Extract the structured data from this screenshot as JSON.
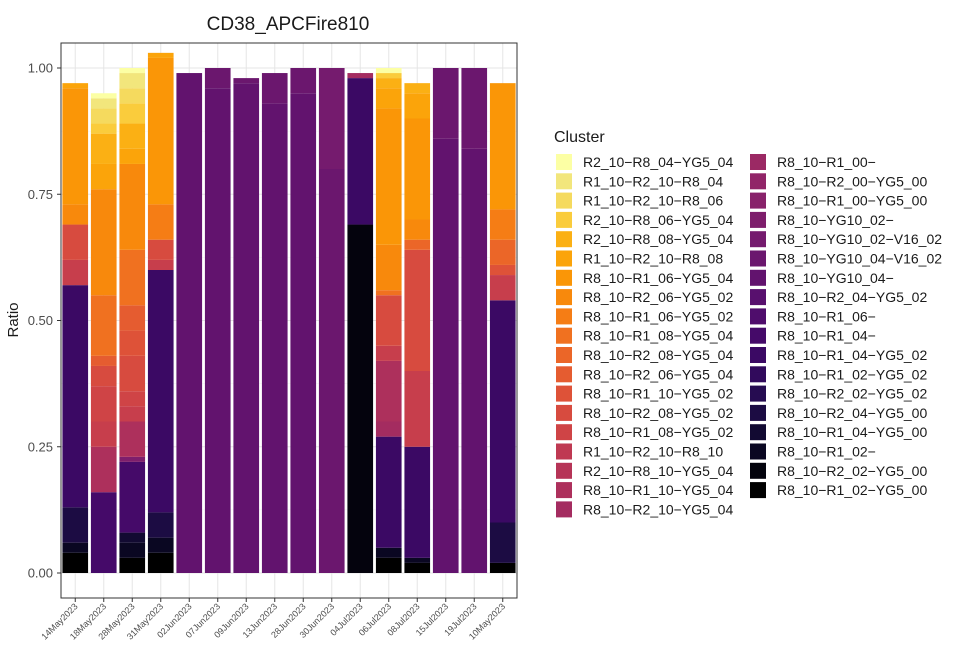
{
  "chart_data": {
    "type": "bar",
    "stacked": true,
    "title": "CD38_APCFire810",
    "xlabel": "",
    "ylabel": "Ratio",
    "ylim": [
      0,
      1.0
    ],
    "yticks": [
      "0.00",
      "0.25",
      "0.50",
      "0.75",
      "1.00"
    ],
    "grid": true,
    "legend_title": "Cluster",
    "legend_position": "right",
    "categories": [
      "14May2023",
      "18May2023",
      "28May2023",
      "31May2023",
      "02Jun2023",
      "07Jun2023",
      "09Jun2023",
      "13Jun2023",
      "28Jun2023",
      "30Jun2023",
      "04Jul2023",
      "06Jul2023",
      "08Jul2023",
      "15Jul2023",
      "19Jul2023",
      "10May2023"
    ],
    "series": [
      {
        "name": "R8_10−R1_02−YG5_00",
        "color": "#000000",
        "values": [
          0.04,
          0,
          0.03,
          0.04,
          0,
          0,
          0,
          0,
          0,
          0,
          0,
          0.03,
          0.02,
          0,
          0,
          0.02
        ]
      },
      {
        "name": "R8_10−R2_02−YG5_00",
        "color": "#04030d",
        "values": [
          0,
          0,
          0,
          0,
          0,
          0,
          0,
          0,
          0,
          0,
          0.69,
          0,
          0,
          0,
          0,
          0
        ]
      },
      {
        "name": "R8_10−R1_02−",
        "color": "#0a0722",
        "values": [
          0.02,
          0,
          0.03,
          0.03,
          0,
          0,
          0,
          0,
          0,
          0,
          0,
          0.02,
          0.01,
          0,
          0,
          0
        ]
      },
      {
        "name": "R8_10−R1_04−YG5_00",
        "color": "#120a32",
        "values": [
          0,
          0,
          0.02,
          0,
          0,
          0,
          0,
          0,
          0,
          0,
          0,
          0,
          0,
          0,
          0,
          0
        ]
      },
      {
        "name": "R8_10−R2_04−YG5_00",
        "color": "#1c0c43",
        "values": [
          0.07,
          0,
          0,
          0.05,
          0,
          0,
          0,
          0,
          0,
          0,
          0,
          0,
          0,
          0,
          0,
          0.08
        ]
      },
      {
        "name": "R8_10−R2_02−YG5_02",
        "color": "#260c51",
        "values": [
          0,
          0,
          0,
          0,
          0,
          0,
          0,
          0,
          0,
          0,
          0,
          0,
          0,
          0,
          0,
          0
        ]
      },
      {
        "name": "R8_10−R1_02−YG5_02",
        "color": "#310a5c",
        "values": [
          0,
          0,
          0,
          0,
          0,
          0,
          0,
          0,
          0,
          0,
          0,
          0,
          0,
          0,
          0,
          0
        ]
      },
      {
        "name": "R8_10−R1_04−YG5_02",
        "color": "#3b0964",
        "values": [
          0.44,
          0,
          0,
          0.48,
          0,
          0,
          0,
          0,
          0,
          0,
          0.29,
          0.22,
          0.22,
          0,
          0,
          0.44
        ]
      },
      {
        "name": "R8_10−R1_04−",
        "color": "#450a69",
        "values": [
          0,
          0.16,
          0.14,
          0,
          0,
          0,
          0,
          0,
          0,
          0,
          0,
          0,
          0,
          0,
          0,
          0
        ]
      },
      {
        "name": "R8_10−R1_06−",
        "color": "#4f0d6c",
        "values": [
          0,
          0,
          0,
          0,
          0,
          0,
          0,
          0,
          0,
          0,
          0,
          0,
          0,
          0,
          0,
          0
        ]
      },
      {
        "name": "R8_10−R2_04−YG5_02",
        "color": "#58106e",
        "values": [
          0,
          0,
          0,
          0,
          0,
          0,
          0,
          0,
          0,
          0,
          0,
          0,
          0,
          0,
          0,
          0
        ]
      },
      {
        "name": "R8_10−YG10_04−",
        "color": "#62136e",
        "values": [
          0,
          0,
          0,
          0,
          0.99,
          0.96,
          0.97,
          0.93,
          0.95,
          0,
          0,
          0,
          0,
          0.86,
          0.84,
          0
        ]
      },
      {
        "name": "R8_10−YG10_04−V16_02",
        "color": "#6b176e",
        "values": [
          0,
          0,
          0,
          0,
          0,
          0.04,
          0.01,
          0.06,
          0.05,
          0.8,
          0,
          0,
          0,
          0.14,
          0.16,
          0
        ]
      },
      {
        "name": "R8_10−YG10_02−V16_02",
        "color": "#751b6e",
        "values": [
          0,
          0,
          0,
          0,
          0,
          0,
          0,
          0,
          0,
          0.2,
          0,
          0,
          0,
          0,
          0,
          0
        ]
      },
      {
        "name": "R8_10−YG10_02−",
        "color": "#7e1e6c",
        "values": [
          0,
          0,
          0.01,
          0,
          0,
          0,
          0,
          0,
          0,
          0,
          0,
          0,
          0,
          0,
          0,
          0
        ]
      },
      {
        "name": "R8_10−R1_00−YG5_00",
        "color": "#88226a",
        "values": [
          0,
          0,
          0,
          0,
          0,
          0,
          0,
          0,
          0,
          0,
          0,
          0,
          0,
          0,
          0,
          0
        ]
      },
      {
        "name": "R8_10−R2_00−YG5_00",
        "color": "#912568",
        "values": [
          0,
          0,
          0,
          0,
          0,
          0,
          0,
          0,
          0,
          0,
          0,
          0,
          0,
          0,
          0,
          0
        ]
      },
      {
        "name": "R8_10−R1_00−",
        "color": "#9b2964",
        "values": [
          0,
          0,
          0,
          0,
          0,
          0,
          0,
          0,
          0,
          0,
          0,
          0,
          0,
          0,
          0,
          0
        ]
      },
      {
        "name": "R8_10−R2_10−YG5_04",
        "color": "#a42c60",
        "values": [
          0,
          0,
          0,
          0,
          0,
          0,
          0,
          0,
          0,
          0,
          0.01,
          0.03,
          0,
          0,
          0,
          0
        ]
      },
      {
        "name": "R8_10−R1_10−YG5_04",
        "color": "#ad305c",
        "values": [
          0,
          0.09,
          0.07,
          0,
          0,
          0,
          0,
          0,
          0,
          0,
          0,
          0.12,
          0,
          0,
          0,
          0
        ]
      },
      {
        "name": "R2_10−R8_10−YG5_04",
        "color": "#b63457",
        "values": [
          0,
          0,
          0,
          0,
          0,
          0,
          0,
          0,
          0,
          0,
          0,
          0,
          0,
          0,
          0,
          0
        ]
      },
      {
        "name": "R1_10−R2_10−R8_10",
        "color": "#bf3952",
        "values": [
          0,
          0,
          0,
          0,
          0,
          0,
          0,
          0,
          0,
          0,
          0,
          0,
          0,
          0,
          0,
          0
        ]
      },
      {
        "name": "R8_10−R2_08−YG5_04",
        "color": "#c73e4c",
        "values": [
          0.05,
          0.05,
          0.03,
          0.02,
          0,
          0,
          0,
          0,
          0,
          0,
          0,
          0.03,
          0.15,
          0,
          0,
          0.05
        ]
      },
      {
        "name": "R8_10−R1_08−YG5_02",
        "color": "#cf4446",
        "values": [
          0,
          0.07,
          0.03,
          0,
          0,
          0,
          0,
          0,
          0,
          0,
          0,
          0,
          0,
          0,
          0,
          0
        ]
      },
      {
        "name": "R8_10−R2_08−YG5_02",
        "color": "#d74b3f",
        "values": [
          0.07,
          0.04,
          0.07,
          0.04,
          0,
          0,
          0,
          0,
          0,
          0,
          0,
          0.1,
          0.24,
          0,
          0,
          0
        ]
      },
      {
        "name": "R8_10−R1_10−YG5_02",
        "color": "#de5238",
        "values": [
          0,
          0,
          0.05,
          0,
          0,
          0,
          0,
          0,
          0,
          0,
          0,
          0,
          0,
          0,
          0,
          0.02
        ]
      },
      {
        "name": "R8_10−R2_06−YG5_04",
        "color": "#e55c30",
        "values": [
          0,
          0.02,
          0.05,
          0,
          0,
          0,
          0,
          0,
          0,
          0,
          0,
          0,
          0,
          0,
          0,
          0
        ]
      },
      {
        "name": "R8_10−R2_08−YG5_04",
        "color": "#eb6628",
        "values": [
          0,
          0,
          0,
          0,
          0,
          0,
          0,
          0,
          0,
          0,
          0,
          0,
          0.02,
          0,
          0,
          0.05
        ]
      },
      {
        "name": "R8_10−R1_08−YG5_04",
        "color": "#f07120",
        "values": [
          0,
          0.12,
          0.11,
          0,
          0,
          0,
          0,
          0,
          0,
          0,
          0,
          0.01,
          0,
          0,
          0,
          0
        ]
      },
      {
        "name": "R8_10−R1_06−YG5_02",
        "color": "#f57d15",
        "values": [
          0,
          0,
          0,
          0.07,
          0,
          0,
          0,
          0,
          0,
          0,
          0,
          0,
          0,
          0,
          0,
          0.06
        ]
      },
      {
        "name": "R8_10−R2_06−YG5_02",
        "color": "#f8890c",
        "values": [
          0.04,
          0.21,
          0.17,
          0,
          0,
          0,
          0,
          0,
          0,
          0,
          0,
          0.09,
          0.04,
          0,
          0,
          0
        ]
      },
      {
        "name": "R8_10−R1_06−YG5_04",
        "color": "#fa9607",
        "values": [
          0.23,
          0,
          0,
          0.29,
          0,
          0,
          0,
          0,
          0,
          0,
          0,
          0.27,
          0.2,
          0,
          0,
          0.25
        ]
      },
      {
        "name": "R1_10−R2_10−R8_08",
        "color": "#fba40a",
        "values": [
          0.01,
          0.05,
          0.03,
          0.01,
          0,
          0,
          0,
          0,
          0,
          0,
          0,
          0.04,
          0.05,
          0,
          0,
          0
        ]
      },
      {
        "name": "R2_10−R8_08−YG5_04",
        "color": "#fbb014",
        "values": [
          0,
          0.06,
          0.05,
          0,
          0,
          0,
          0,
          0,
          0,
          0,
          0,
          0.02,
          0.02,
          0,
          0,
          0
        ]
      },
      {
        "name": "R2_10−R8_06−YG5_04",
        "color": "#facc3c",
        "values": [
          0,
          0.02,
          0.04,
          0,
          0,
          0,
          0,
          0,
          0,
          0,
          0,
          0.01,
          0,
          0,
          0,
          0
        ]
      },
      {
        "name": "R1_10−R2_10−R8_06",
        "color": "#f5da5e",
        "values": [
          0,
          0.03,
          0.03,
          0,
          0,
          0,
          0,
          0,
          0,
          0,
          0,
          0,
          0,
          0,
          0,
          0
        ]
      },
      {
        "name": "R1_10−R2_10−R8_04",
        "color": "#f2e67c",
        "values": [
          0,
          0.02,
          0.03,
          0,
          0,
          0,
          0,
          0,
          0,
          0,
          0,
          0,
          0,
          0,
          0,
          0
        ]
      },
      {
        "name": "R2_10−R8_04−YG5_04",
        "color": "#fcffa4",
        "values": [
          0,
          0.01,
          0.01,
          0,
          0,
          0,
          0,
          0,
          0,
          0,
          0,
          0.01,
          0,
          0,
          0,
          0
        ]
      }
    ]
  },
  "legend_order": [
    "R2_10−R8_04−YG5_04",
    "R1_10−R2_10−R8_04",
    "R1_10−R2_10−R8_06",
    "R2_10−R8_06−YG5_04",
    "R2_10−R8_08−YG5_04",
    "R1_10−R2_10−R8_08",
    "R8_10−R1_06−YG5_04",
    "R8_10−R2_06−YG5_02",
    "R8_10−R1_06−YG5_02",
    "R8_10−R1_08−YG5_04",
    "R8_10−R2_08−YG5_04",
    "R8_10−R2_06−YG5_04",
    "R8_10−R1_10−YG5_02",
    "R8_10−R2_08−YG5_02",
    "R8_10−R1_08−YG5_02",
    "R1_10−R2_10−R8_10",
    "R2_10−R8_10−YG5_04",
    "R8_10−R1_10−YG5_04",
    "R8_10−R2_10−YG5_04",
    "R8_10−R1_00−",
    "R8_10−R2_00−YG5_00",
    "R8_10−R1_00−YG5_00",
    "R8_10−YG10_02−",
    "R8_10−YG10_02−V16_02",
    "R8_10−YG10_04−V16_02",
    "R8_10−YG10_04−",
    "R8_10−R2_04−YG5_02",
    "R8_10−R1_06−",
    "R8_10−R1_04−",
    "R8_10−R1_04−YG5_02",
    "R8_10−R1_02−YG5_02",
    "R8_10−R2_02−YG5_02",
    "R8_10−R2_04−YG5_00",
    "R8_10−R1_04−YG5_00",
    "R8_10−R1_02−",
    "R8_10−R2_02−YG5_00",
    "R8_10−R1_02−YG5_00"
  ]
}
